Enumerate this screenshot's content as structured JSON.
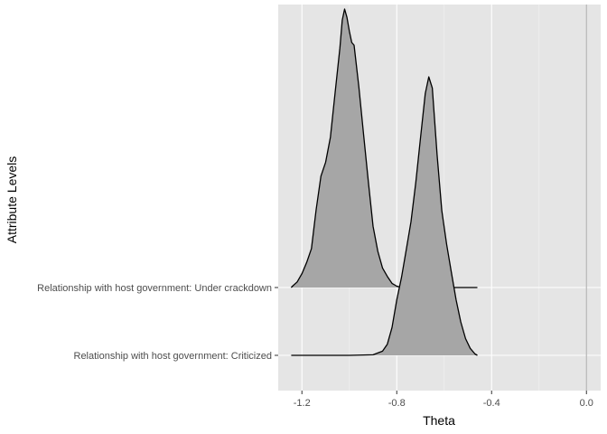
{
  "chart_data": {
    "type": "area",
    "subtype": "ridgeline-density",
    "title": "",
    "xlabel": "Theta",
    "ylabel": "Attribute Levels",
    "xlim": [
      -1.3,
      0.06
    ],
    "x_ticks": [
      -1.2,
      -0.8,
      -0.4,
      0.0
    ],
    "x_tick_labels": [
      "-1.2",
      "-0.8",
      "-0.4",
      "0.0"
    ],
    "reference_line_x": 0.0,
    "grid": true,
    "legend": "none",
    "categories": [
      "Relationship with host government: Criticized",
      "Relationship with host government: Under crackdown"
    ],
    "series": [
      {
        "name": "Relationship with host government: Criticized",
        "range": [
          -1.245,
          -0.46
        ],
        "x": [
          -1.245,
          -1.0,
          -0.9,
          -0.86,
          -0.84,
          -0.82,
          -0.8,
          -0.78,
          -0.76,
          -0.74,
          -0.72,
          -0.7,
          -0.68,
          -0.665,
          -0.65,
          -0.63,
          -0.61,
          -0.59,
          -0.57,
          -0.55,
          -0.53,
          -0.51,
          -0.49,
          -0.47,
          -0.46
        ],
        "density": [
          0,
          0,
          0.002,
          0.015,
          0.04,
          0.1,
          0.2,
          0.28,
          0.38,
          0.48,
          0.62,
          0.78,
          0.94,
          1.0,
          0.96,
          0.72,
          0.52,
          0.4,
          0.3,
          0.2,
          0.12,
          0.06,
          0.025,
          0.005,
          0
        ]
      },
      {
        "name": "Relationship with host government: Under crackdown",
        "range": [
          -1.245,
          -0.46
        ],
        "x": [
          -1.245,
          -1.24,
          -1.22,
          -1.2,
          -1.18,
          -1.16,
          -1.14,
          -1.12,
          -1.1,
          -1.08,
          -1.06,
          -1.04,
          -1.03,
          -1.02,
          -1.01,
          -1.0,
          -0.99,
          -0.98,
          -0.96,
          -0.94,
          -0.92,
          -0.9,
          -0.88,
          -0.86,
          -0.84,
          -0.82,
          -0.8,
          -0.78,
          -0.76,
          -0.72,
          -0.66,
          -0.55,
          -0.46
        ],
        "density": [
          0,
          0.005,
          0.02,
          0.05,
          0.09,
          0.14,
          0.28,
          0.4,
          0.45,
          0.54,
          0.7,
          0.86,
          0.96,
          1.0,
          0.97,
          0.92,
          0.88,
          0.87,
          0.72,
          0.55,
          0.38,
          0.22,
          0.13,
          0.07,
          0.04,
          0.015,
          0.005,
          0,
          0,
          0,
          0,
          0,
          0
        ]
      }
    ]
  }
}
